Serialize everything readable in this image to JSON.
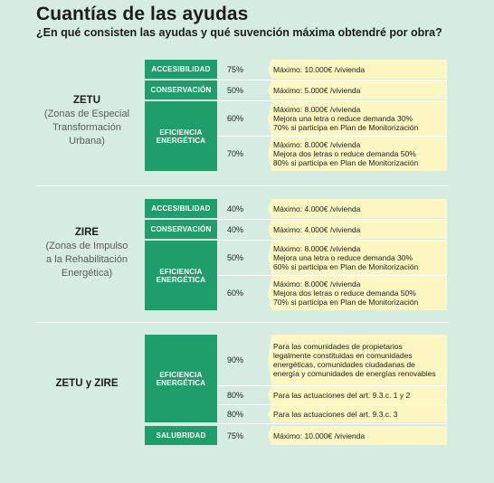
{
  "header": {
    "title": "Cuantías de las ayudas",
    "subtitle": "¿En qué consisten las ayudas y qué suvención máxima obtendré por obra?"
  },
  "sections": [
    {
      "name": "ZETU",
      "description": "(Zonas de Especial Transformación Urbana)",
      "rows": [
        {
          "category": "ACCESIBILIDAD",
          "percent": "75%",
          "text": "Máximo: 10.000€ /vivienda"
        },
        {
          "category": "CONSERVACIÓN",
          "percent": "50%",
          "text": "Máximo: 5.000€ /vivienda"
        },
        {
          "category": "EFICIENCIA ENERGÉTICA",
          "percent": "60%",
          "text": "Máximo: 8.000€ /vivienda\nMejora una letra o reduce demanda 30%\n70% si participa en Plan de Monitorización"
        },
        {
          "category": "",
          "percent": "70%",
          "text": "Máximo: 8.000€ /vivienda\nMejora dos letras o reduce demanda 50%\n80% si participa en Plan de Monitorización"
        }
      ]
    },
    {
      "name": "ZIRE",
      "description": "(Zonas de Impulso a la Rehabilitación Energética)",
      "rows": [
        {
          "category": "ACCESIBILIDAD",
          "percent": "40%",
          "text": "Máximo: 4.000€ /vivienda"
        },
        {
          "category": "CONSERVACIÓN",
          "percent": "40%",
          "text": "Máximo: 4.000€ /vivienda"
        },
        {
          "category": "EFICIENCIA ENERGÉTICA",
          "percent": "50%",
          "text": "Máximo: 8.000€ /vivienda\nMejora una letra o reduce demanda 30%\n60% si participa en Plan de Monitorización"
        },
        {
          "category": "",
          "percent": "60%",
          "text": "Máximo: 8.000€ /vivienda\nMejora dos letras o reduce demanda 50%\n70% si participa en Plan de Monitorización"
        }
      ]
    },
    {
      "name": "ZETU y ZIRE",
      "description": "",
      "rows": [
        {
          "category": "EFICIENCIA ENERGÉTICA",
          "percent": "90%",
          "text": "Para las comunidades de propietarios legalmente constituidas en comunidades energéticas, comunidades ciudadanas de energía y comunidades de energías renovables"
        },
        {
          "category": "",
          "percent": "80%",
          "text": "Para las actuaciones del art. 9.3.c. 1 y 2"
        },
        {
          "category": "",
          "percent": "80%",
          "text": "Para las actuaciones del art. 9.3.c. 3"
        },
        {
          "category": "SALUBRIDAD",
          "percent": "75%",
          "text": "Máximo: 10.000€ /vivienda"
        }
      ]
    }
  ]
}
